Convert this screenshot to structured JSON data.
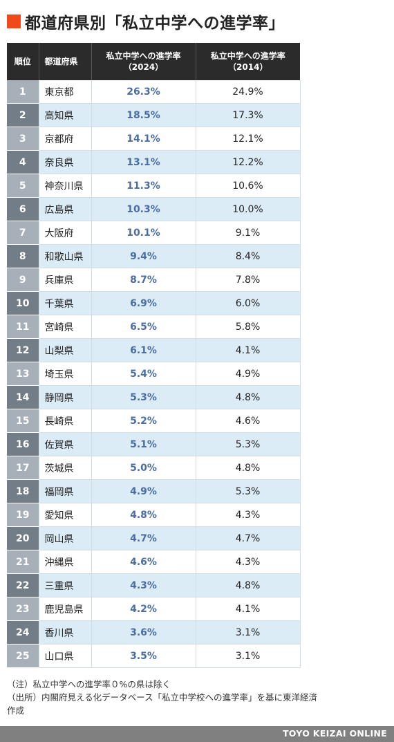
{
  "title": "都道府県別「私立中学への進学率」",
  "colors": {
    "accent": "#f04a1b",
    "header_bg": "#2b2b2b",
    "value_2024": "#4a6ea4"
  },
  "table": {
    "headers": {
      "rank": "順位",
      "prefecture": "都道府県",
      "v2024_line1": "私立中学への進学率",
      "v2024_line2": "（2024）",
      "v2014_line1": "私立中学への進学率",
      "v2014_line2": "（2014）"
    }
  },
  "chart_data": {
    "type": "table",
    "title": "都道府県別「私立中学への進学率」",
    "columns": [
      "順位",
      "都道府県",
      "私立中学への進学率（2024）",
      "私立中学への進学率（2014）"
    ],
    "rows": [
      {
        "rank": "1",
        "prefecture": "東京都",
        "v2024": "26.3%",
        "v2014": "24.9%"
      },
      {
        "rank": "2",
        "prefecture": "高知県",
        "v2024": "18.5%",
        "v2014": "17.3%"
      },
      {
        "rank": "3",
        "prefecture": "京都府",
        "v2024": "14.1%",
        "v2014": "12.1%"
      },
      {
        "rank": "4",
        "prefecture": "奈良県",
        "v2024": "13.1%",
        "v2014": "12.2%"
      },
      {
        "rank": "5",
        "prefecture": "神奈川県",
        "v2024": "11.3%",
        "v2014": "10.6%"
      },
      {
        "rank": "6",
        "prefecture": "広島県",
        "v2024": "10.3%",
        "v2014": "10.0%"
      },
      {
        "rank": "7",
        "prefecture": "大阪府",
        "v2024": "10.1%",
        "v2014": "9.1%"
      },
      {
        "rank": "8",
        "prefecture": "和歌山県",
        "v2024": "9.4%",
        "v2014": "8.4%"
      },
      {
        "rank": "9",
        "prefecture": "兵庫県",
        "v2024": "8.7%",
        "v2014": "7.8%"
      },
      {
        "rank": "10",
        "prefecture": "千葉県",
        "v2024": "6.9%",
        "v2014": "6.0%"
      },
      {
        "rank": "11",
        "prefecture": "宮崎県",
        "v2024": "6.5%",
        "v2014": "5.8%"
      },
      {
        "rank": "12",
        "prefecture": "山梨県",
        "v2024": "6.1%",
        "v2014": "4.1%"
      },
      {
        "rank": "13",
        "prefecture": "埼玉県",
        "v2024": "5.4%",
        "v2014": "4.9%"
      },
      {
        "rank": "14",
        "prefecture": "静岡県",
        "v2024": "5.3%",
        "v2014": "4.8%"
      },
      {
        "rank": "15",
        "prefecture": "長崎県",
        "v2024": "5.2%",
        "v2014": "4.6%"
      },
      {
        "rank": "16",
        "prefecture": "佐賀県",
        "v2024": "5.1%",
        "v2014": "5.3%"
      },
      {
        "rank": "17",
        "prefecture": "茨城県",
        "v2024": "5.0%",
        "v2014": "4.8%"
      },
      {
        "rank": "18",
        "prefecture": "福岡県",
        "v2024": "4.9%",
        "v2014": "5.3%"
      },
      {
        "rank": "19",
        "prefecture": "愛知県",
        "v2024": "4.8%",
        "v2014": "4.3%"
      },
      {
        "rank": "20",
        "prefecture": "岡山県",
        "v2024": "4.7%",
        "v2014": "4.7%"
      },
      {
        "rank": "21",
        "prefecture": "沖縄県",
        "v2024": "4.6%",
        "v2014": "4.3%"
      },
      {
        "rank": "22",
        "prefecture": "三重県",
        "v2024": "4.3%",
        "v2014": "4.8%"
      },
      {
        "rank": "23",
        "prefecture": "鹿児島県",
        "v2024": "4.2%",
        "v2014": "4.1%"
      },
      {
        "rank": "24",
        "prefecture": "香川県",
        "v2024": "3.6%",
        "v2014": "3.1%"
      },
      {
        "rank": "25",
        "prefecture": "山口県",
        "v2024": "3.5%",
        "v2014": "3.1%"
      }
    ]
  },
  "notes": {
    "note": "（注）私立中学への進学率０%の県は除く",
    "source_line1": "（出所）内閣府見える化データベース「私立中学校への進学率」を基に東洋経済",
    "source_line2": "作成"
  },
  "footer": {
    "brand": "TOYO KEIZAI ONLINE"
  }
}
